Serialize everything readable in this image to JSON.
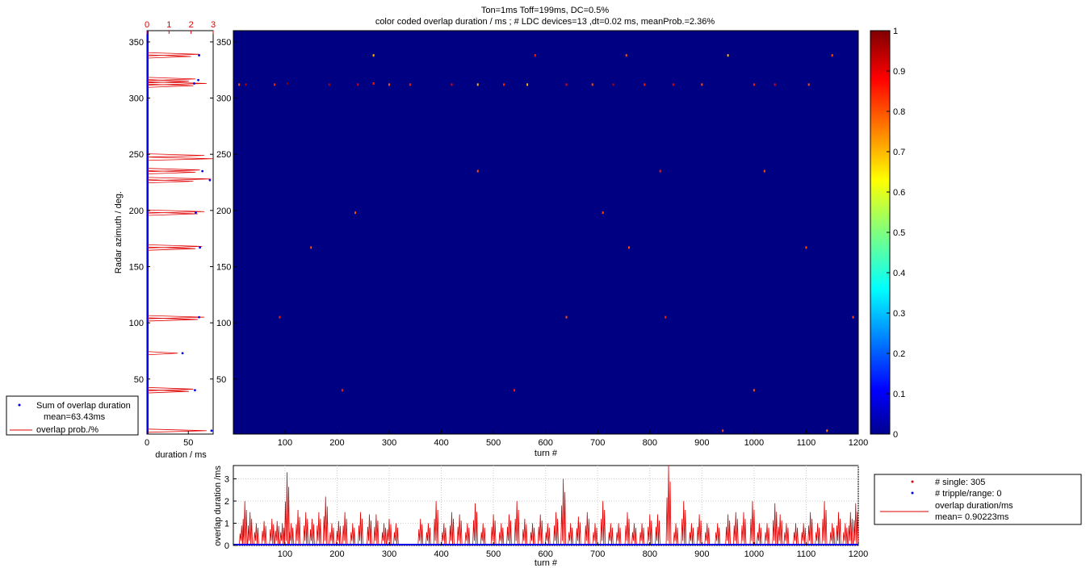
{
  "chart_data": [
    {
      "type": "heatmap",
      "title_lines": [
        "Ton=1ms Toff=199ms, DC=0.5%",
        "color coded overlap duration / ms ; # LDC devices=13 ,dt=0.02 ms, meanProb.=2.36%"
      ],
      "xlabel": "turn #",
      "ylabel": "",
      "xlim": [
        1,
        1200
      ],
      "ylim": [
        1,
        360
      ],
      "xticks": [
        100,
        200,
        300,
        400,
        500,
        600,
        700,
        800,
        900,
        1000,
        1100,
        1200
      ],
      "yticks": [
        50,
        100,
        150,
        200,
        250,
        300,
        350
      ],
      "background_value": 0,
      "colormap": "jet",
      "colorbar": {
        "ticks": [
          0,
          0.1,
          0.2,
          0.3,
          0.4,
          0.5,
          0.6,
          0.7,
          0.8,
          0.9,
          1
        ],
        "labels": [
          "0",
          "0.1",
          "0.2",
          "0.3",
          "0.4",
          "0.5",
          "0.6",
          "0.7",
          "0.8",
          "0.9",
          "1"
        ],
        "range": [
          0,
          1
        ]
      },
      "hit_azimuths": [
        5,
        40,
        73,
        105,
        167,
        198,
        227,
        235,
        247,
        312,
        316,
        338
      ],
      "hits": [
        [
          12,
          312,
          0.8
        ],
        [
          25,
          312,
          0.95
        ],
        [
          80,
          312,
          0.85
        ],
        [
          105,
          313,
          1.0
        ],
        [
          185,
          312,
          0.95
        ],
        [
          240,
          312,
          0.9
        ],
        [
          270,
          313,
          0.85
        ],
        [
          300,
          312,
          0.8
        ],
        [
          340,
          312,
          0.85
        ],
        [
          420,
          312,
          0.9
        ],
        [
          470,
          312,
          0.7
        ],
        [
          520,
          312,
          0.85
        ],
        [
          565,
          312,
          0.7
        ],
        [
          640,
          312,
          0.9
        ],
        [
          690,
          312,
          0.8
        ],
        [
          730,
          312,
          0.95
        ],
        [
          790,
          312,
          0.85
        ],
        [
          845,
          312,
          0.9
        ],
        [
          900,
          312,
          0.8
        ],
        [
          1000,
          312,
          0.85
        ],
        [
          1040,
          312,
          0.9
        ],
        [
          1105,
          312,
          0.8
        ],
        [
          270,
          338,
          0.7
        ],
        [
          580,
          338,
          0.85
        ],
        [
          755,
          338,
          0.8
        ],
        [
          950,
          338,
          0.7
        ],
        [
          1150,
          338,
          0.8
        ],
        [
          470,
          235,
          0.8
        ],
        [
          820,
          235,
          0.85
        ],
        [
          1020,
          235,
          0.8
        ],
        [
          210,
          40,
          0.85
        ],
        [
          540,
          40,
          0.85
        ],
        [
          1000,
          40,
          0.8
        ],
        [
          1140,
          4,
          0.75
        ],
        [
          940,
          4,
          0.8
        ],
        [
          150,
          167,
          0.8
        ],
        [
          760,
          167,
          0.8
        ],
        [
          1100,
          167,
          0.8
        ],
        [
          235,
          198,
          0.8
        ],
        [
          710,
          198,
          0.8
        ],
        [
          90,
          105,
          0.85
        ],
        [
          640,
          105,
          0.8
        ],
        [
          830,
          105,
          0.85
        ],
        [
          1190,
          105,
          0.8
        ]
      ]
    },
    {
      "type": "line",
      "xlabel": "duration / ms",
      "ylabel": "Radar azimuth / deg.",
      "xlim": [
        0,
        80
      ],
      "xticks": [
        0,
        50
      ],
      "ylim": [
        1,
        360
      ],
      "yticks": [
        50,
        100,
        150,
        200,
        250,
        300,
        350
      ],
      "top_axis": {
        "label": "",
        "lim": [
          0,
          3
        ],
        "ticks": [
          0,
          1,
          2,
          3
        ]
      },
      "legend": {
        "placement": "bottom-left-outside",
        "entries": [
          {
            "label": "Sum of overlap duration",
            "sublabel": "mean=63.43ms",
            "marker": "point",
            "color": "#0000ee"
          },
          {
            "label": "overlap prob./%",
            "marker": "line",
            "color": "#e00000"
          }
        ]
      },
      "series": [
        {
          "name": "Sum of overlap duration",
          "color": "#0000ee",
          "points": [
            [
              78,
              4
            ],
            [
              58,
              40
            ],
            [
              43,
              73
            ],
            [
              63,
              105
            ],
            [
              64,
              167
            ],
            [
              59,
              198
            ],
            [
              76,
              227
            ],
            [
              67,
              235
            ],
            [
              62,
              316
            ],
            [
              57,
              313
            ],
            [
              63,
              338
            ]
          ]
        },
        {
          "name": "overlap prob./%",
          "color": "#e00000",
          "spikes": [
            [
              4,
              2.7
            ],
            [
              39,
              1.9
            ],
            [
              41,
              2.1
            ],
            [
              73,
              1.4
            ],
            [
              103,
              2.3
            ],
            [
              105,
              2.6
            ],
            [
              166,
              2.2
            ],
            [
              168,
              2.5
            ],
            [
              197,
              2.3
            ],
            [
              199,
              2.6
            ],
            [
              226,
              2.1
            ],
            [
              228,
              2.9
            ],
            [
              234,
              2.2
            ],
            [
              236,
              2.4
            ],
            [
              246,
              3.0
            ],
            [
              249,
              2.6
            ],
            [
              311,
              2.1
            ],
            [
              313,
              2.7
            ],
            [
              315,
              1.9
            ],
            [
              317,
              2.2
            ],
            [
              337,
              2.0
            ],
            [
              339,
              2.4
            ]
          ]
        }
      ]
    },
    {
      "type": "line",
      "xlabel": "turn #",
      "ylabel": "overlap duration /ms",
      "xlim": [
        1,
        1200
      ],
      "xticks": [
        100,
        200,
        300,
        400,
        500,
        600,
        700,
        800,
        900,
        1000,
        1100,
        1200
      ],
      "ylim": [
        0,
        3.6
      ],
      "yticks": [
        0,
        1,
        2,
        3
      ],
      "grid": true,
      "legend": {
        "placement": "right-outside",
        "entries": [
          {
            "label": "# single: 305",
            "marker": "point",
            "color": "#e00000"
          },
          {
            "label": "# tripple/range: 0",
            "marker": "point",
            "color": "#0000ee"
          },
          {
            "label": "overlap duration/ms",
            "sublabel": "mean= 0.90223ms",
            "marker": "line",
            "color": "#e00000"
          }
        ]
      },
      "series": [
        {
          "name": "overlap duration/ms",
          "color": "#e00000",
          "peaks": [
            [
              17,
              0.9
            ],
            [
              23,
              2.0
            ],
            [
              33,
              1.5
            ],
            [
              45,
              1.0
            ],
            [
              60,
              1.1
            ],
            [
              75,
              1.2
            ],
            [
              85,
              1.1
            ],
            [
              95,
              1.0
            ],
            [
              104,
              3.3
            ],
            [
              112,
              1.0
            ],
            [
              125,
              1.6
            ],
            [
              140,
              1.5
            ],
            [
              152,
              1.2
            ],
            [
              165,
              1.5
            ],
            [
              178,
              2.2
            ],
            [
              190,
              1.0
            ],
            [
              203,
              1.1
            ],
            [
              215,
              1.5
            ],
            [
              230,
              1.0
            ],
            [
              245,
              1.5
            ],
            [
              262,
              1.4
            ],
            [
              275,
              1.4
            ],
            [
              290,
              1.0
            ],
            [
              300,
              1.2
            ],
            [
              313,
              1.0
            ],
            [
              360,
              1.2
            ],
            [
              375,
              1.0
            ],
            [
              390,
              2.0
            ],
            [
              405,
              1.0
            ],
            [
              420,
              1.5
            ],
            [
              435,
              1.4
            ],
            [
              450,
              1.0
            ],
            [
              465,
              1.9
            ],
            [
              480,
              1.0
            ],
            [
              500,
              1.4
            ],
            [
              515,
              1.0
            ],
            [
              530,
              1.4
            ],
            [
              545,
              2.0
            ],
            [
              560,
              1.2
            ],
            [
              575,
              1.0
            ],
            [
              590,
              1.4
            ],
            [
              604,
              1.0
            ],
            [
              620,
              1.5
            ],
            [
              634,
              3.0
            ],
            [
              648,
              1.0
            ],
            [
              663,
              1.3
            ],
            [
              680,
              1.5
            ],
            [
              695,
              1.0
            ],
            [
              710,
              2.0
            ],
            [
              725,
              1.0
            ],
            [
              740,
              1.0
            ],
            [
              757,
              1.5
            ],
            [
              770,
              1.0
            ],
            [
              785,
              1.0
            ],
            [
              800,
              1.4
            ],
            [
              815,
              1.4
            ],
            [
              836,
              3.6
            ],
            [
              850,
              1.0
            ],
            [
              865,
              2.0
            ],
            [
              880,
              1.0
            ],
            [
              895,
              1.4
            ],
            [
              910,
              1.0
            ],
            [
              930,
              1.0
            ],
            [
              950,
              1.4
            ],
            [
              965,
              1.5
            ],
            [
              980,
              1.5
            ],
            [
              997,
              2.0
            ],
            [
              1010,
              1.0
            ],
            [
              1025,
              1.0
            ],
            [
              1040,
              1.9
            ],
            [
              1050,
              1.4
            ],
            [
              1062,
              1.0
            ],
            [
              1080,
              1.0
            ],
            [
              1095,
              1.0
            ],
            [
              1108,
              1.5
            ],
            [
              1122,
              1.0
            ],
            [
              1135,
              2.0
            ],
            [
              1150,
              1.0
            ],
            [
              1162,
              1.5
            ],
            [
              1175,
              1.0
            ],
            [
              1185,
              1.5
            ],
            [
              1195,
              1.9
            ]
          ]
        },
        {
          "name": "# tripple/range: 0",
          "color": "#0000ee",
          "values": "zero baseline"
        }
      ]
    }
  ]
}
